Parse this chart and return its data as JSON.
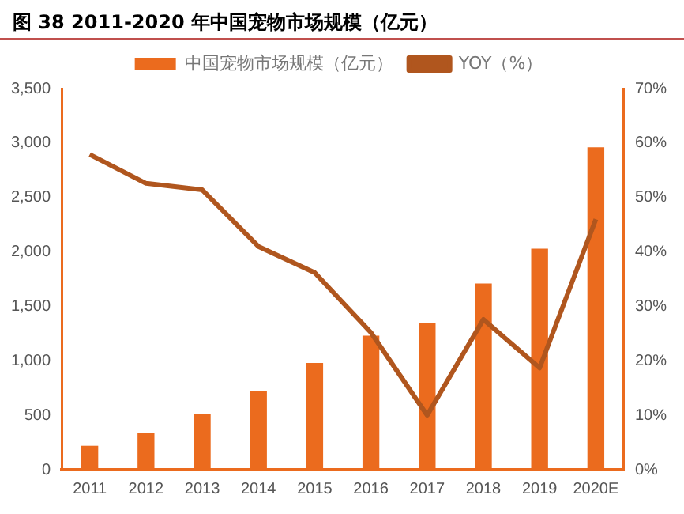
{
  "chart_data": {
    "type": "bar",
    "title": "图 38 2011-2020 年中国宠物市场规模（亿元）",
    "categories": [
      "2011",
      "2012",
      "2013",
      "2014",
      "2015",
      "2016",
      "2017",
      "2018",
      "2019",
      "2020E"
    ],
    "series": [
      {
        "name": "中国宠物市场规模（亿元）",
        "color": "#eb6b1e",
        "values": [
          220,
          340,
          510,
          720,
          980,
          1230,
          1350,
          1710,
          2030,
          2960
        ]
      },
      {
        "name": "YOY（%）",
        "type": "line",
        "axis": "y2",
        "color": "#b0561e",
        "values": [
          57.9,
          52.6,
          51.4,
          41,
          36.2,
          25.2,
          10,
          27.6,
          18.7,
          46
        ]
      }
    ],
    "ylim": [
      0,
      3500
    ],
    "yticks": [
      0,
      500,
      {
        "value": 1000,
        "label": "1,000"
      },
      {
        "value": 1500,
        "label": "1,500"
      },
      {
        "value": 2000,
        "label": "2,000"
      },
      {
        "value": 2500,
        "label": "2,500"
      },
      {
        "value": 3000,
        "label": "3,000"
      },
      {
        "value": 3500,
        "label": "3,500"
      }
    ],
    "y2lim": [
      0,
      70
    ],
    "y2ticks": [
      {
        "value": 0,
        "label": "0%"
      },
      {
        "value": 10,
        "label": "10%"
      },
      {
        "value": 20,
        "label": "20%"
      },
      {
        "value": 30,
        "label": "30%"
      },
      {
        "value": 40,
        "label": "40%"
      },
      {
        "value": 50,
        "label": "50%"
      },
      {
        "value": 60,
        "label": "60%"
      },
      {
        "value": 70,
        "label": "70%"
      }
    ],
    "grid": false,
    "legend": "top",
    "marker": "none",
    "line_style": "solid"
  }
}
